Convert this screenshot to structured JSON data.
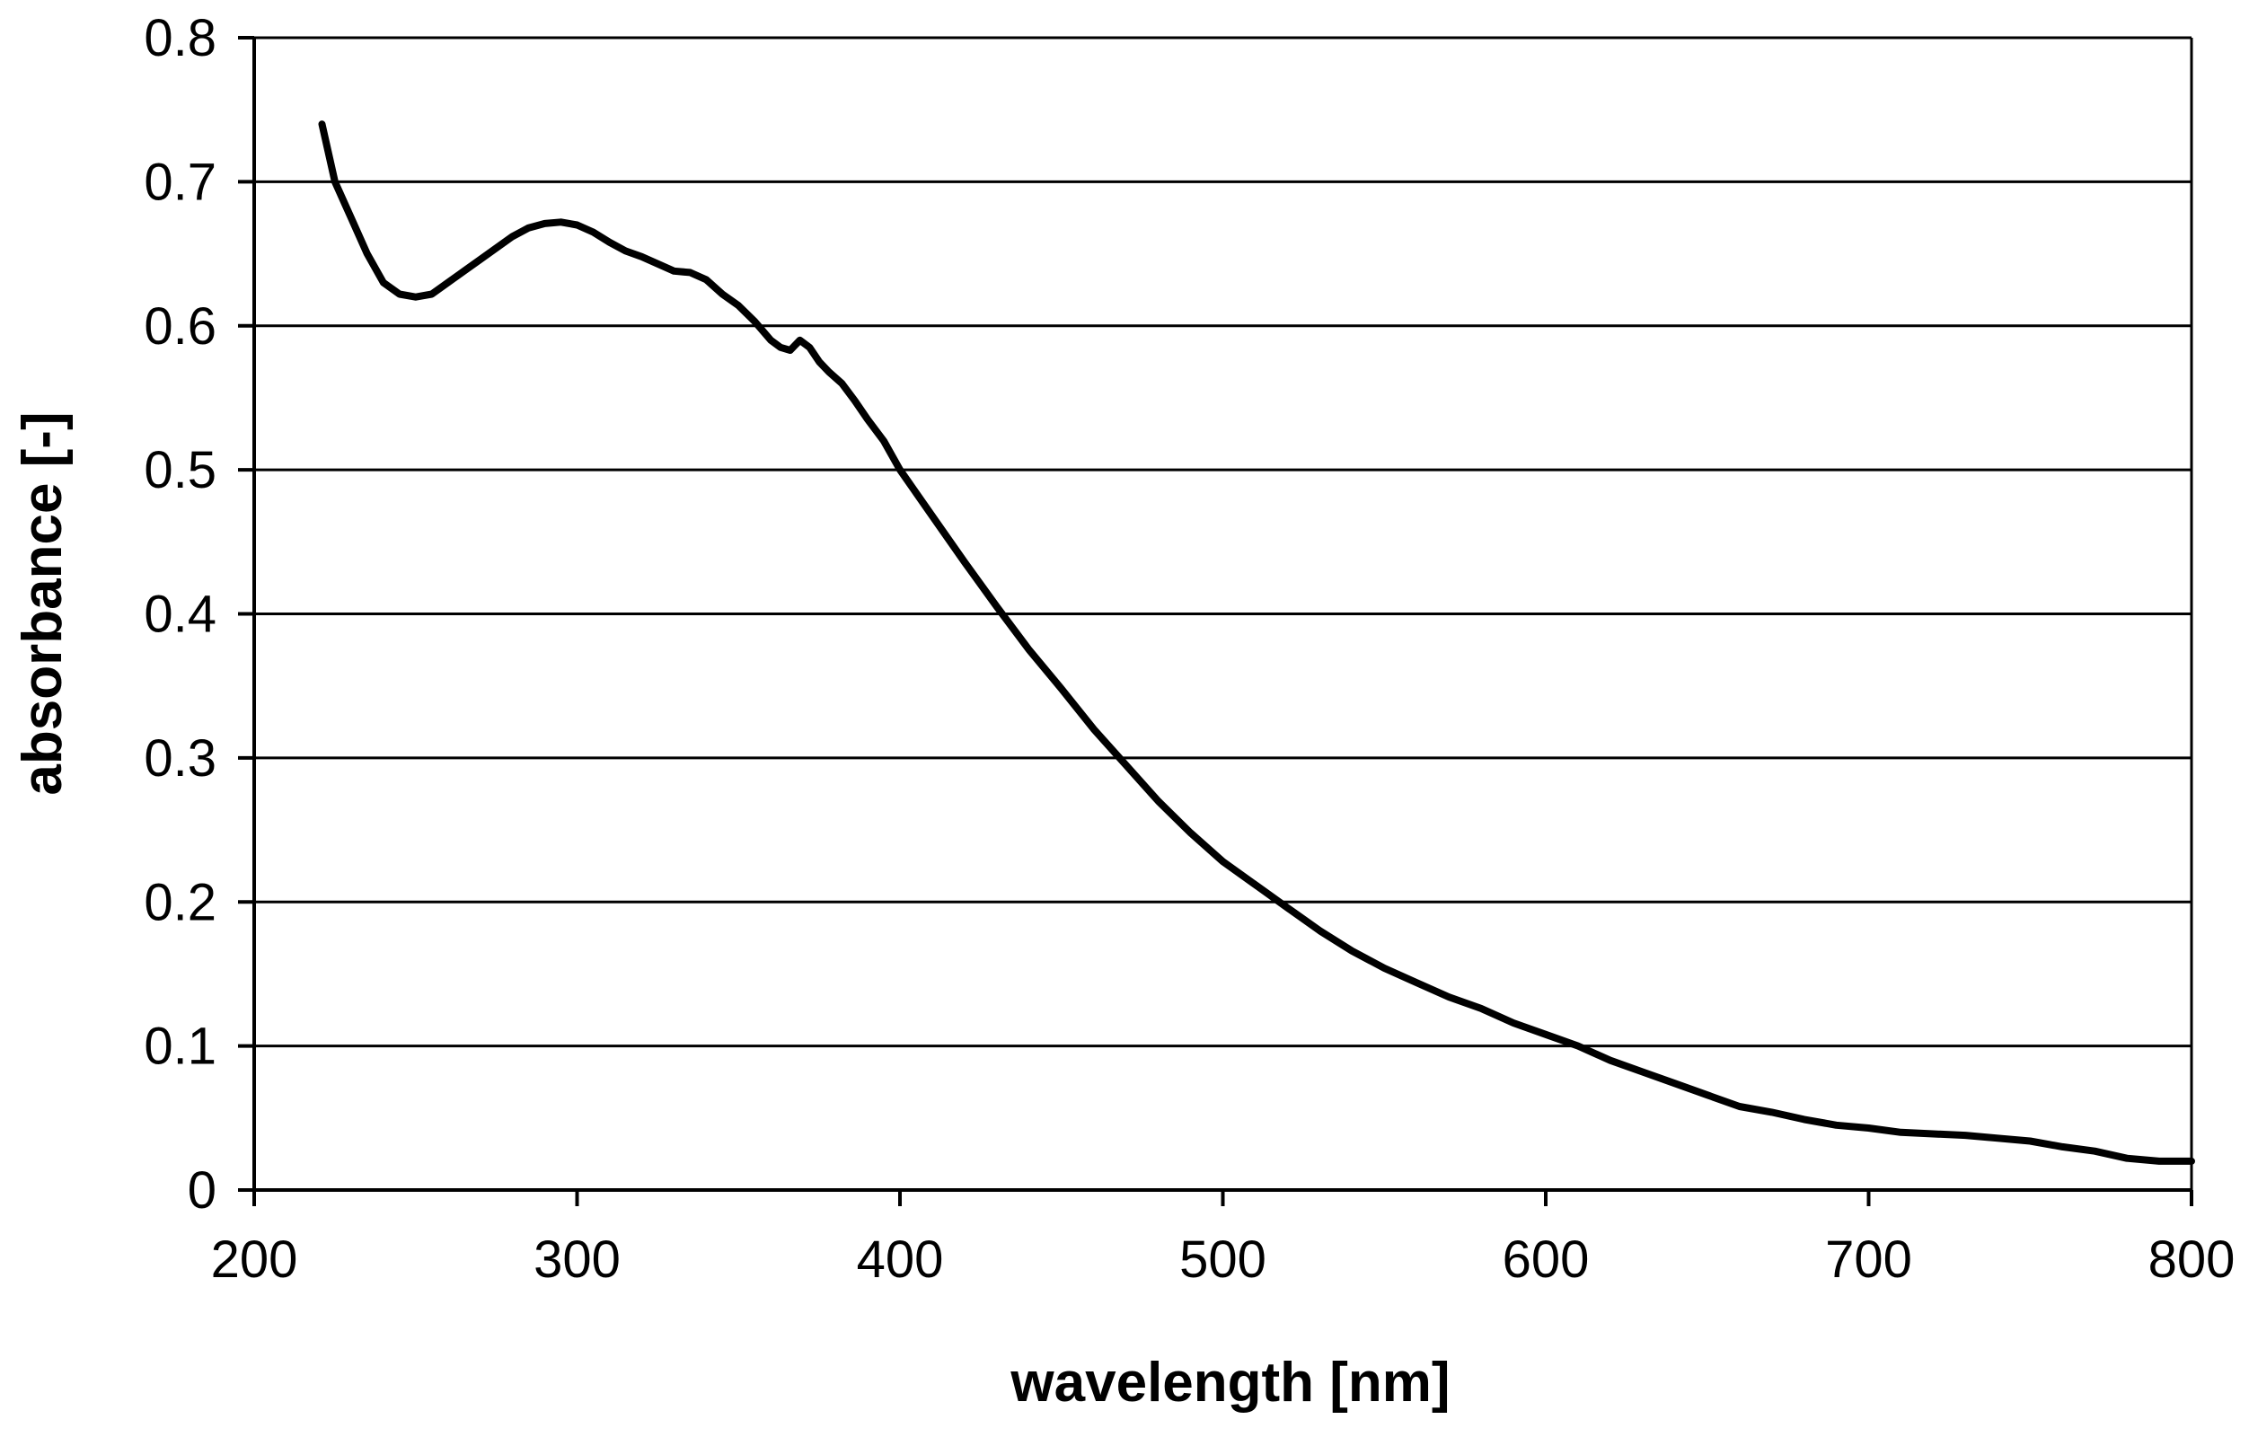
{
  "chart_data": {
    "type": "line",
    "title": "",
    "xlabel": "wavelength [nm]",
    "ylabel": "absorbance [-]",
    "xlim": [
      200,
      800
    ],
    "ylim": [
      0,
      0.8
    ],
    "xticks": [
      200,
      300,
      400,
      500,
      600,
      700,
      800
    ],
    "yticks": [
      0,
      0.1,
      0.2,
      0.3,
      0.4,
      0.5,
      0.6,
      0.7,
      0.8
    ],
    "xtick_labels": [
      "200",
      "300",
      "400",
      "500",
      "600",
      "700",
      "800"
    ],
    "ytick_labels": [
      "0",
      "0.1",
      "0.2",
      "0.3",
      "0.4",
      "0.5",
      "0.6",
      "0.7",
      "0.8"
    ],
    "grid": "horizontal",
    "legend": "none",
    "colors": {
      "line": "#000000",
      "grid": "#000000",
      "background": "#ffffff"
    },
    "series": [
      {
        "name": "absorbance",
        "x": [
          221,
          222,
          225,
          230,
          235,
          240,
          245,
          250,
          255,
          260,
          265,
          270,
          275,
          280,
          285,
          290,
          295,
          300,
          305,
          310,
          315,
          320,
          325,
          330,
          335,
          340,
          345,
          350,
          355,
          360,
          363,
          366,
          369,
          372,
          375,
          378,
          382,
          386,
          390,
          395,
          400,
          410,
          420,
          430,
          440,
          450,
          460,
          470,
          480,
          490,
          500,
          510,
          520,
          530,
          540,
          550,
          560,
          570,
          580,
          590,
          600,
          610,
          620,
          630,
          640,
          650,
          660,
          670,
          680,
          690,
          700,
          710,
          720,
          730,
          740,
          750,
          760,
          770,
          780,
          790,
          800
        ],
        "y": [
          0.74,
          0.73,
          0.7,
          0.675,
          0.65,
          0.63,
          0.622,
          0.62,
          0.622,
          0.63,
          0.638,
          0.646,
          0.654,
          0.662,
          0.668,
          0.671,
          0.672,
          0.67,
          0.665,
          0.658,
          0.652,
          0.648,
          0.643,
          0.638,
          0.637,
          0.632,
          0.622,
          0.614,
          0.603,
          0.59,
          0.585,
          0.583,
          0.59,
          0.585,
          0.575,
          0.568,
          0.56,
          0.548,
          0.535,
          0.52,
          0.5,
          0.468,
          0.436,
          0.405,
          0.375,
          0.348,
          0.32,
          0.295,
          0.27,
          0.248,
          0.228,
          0.212,
          0.196,
          0.18,
          0.166,
          0.154,
          0.144,
          0.134,
          0.126,
          0.116,
          0.108,
          0.1,
          0.09,
          0.082,
          0.074,
          0.066,
          0.058,
          0.054,
          0.049,
          0.045,
          0.043,
          0.04,
          0.039,
          0.038,
          0.036,
          0.034,
          0.03,
          0.027,
          0.022,
          0.02,
          0.02
        ]
      }
    ]
  }
}
